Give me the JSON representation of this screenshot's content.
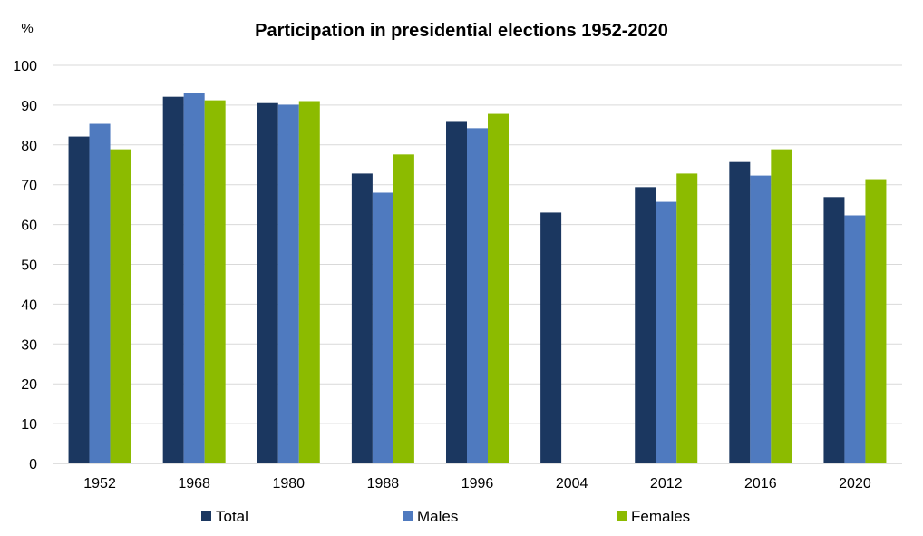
{
  "chart_data": {
    "type": "bar",
    "title": "Participation in presidential elections 1952-2020",
    "ylabel": "%",
    "xlabel": "",
    "ylim": [
      0,
      100
    ],
    "yticks": [
      0,
      10,
      20,
      30,
      40,
      50,
      60,
      70,
      80,
      90,
      100
    ],
    "grid": true,
    "legend_position": "bottom",
    "categories": [
      "1952",
      "1968",
      "1980",
      "1988",
      "1996",
      "2004",
      "2012",
      "2016",
      "2020"
    ],
    "series": [
      {
        "name": "Total",
        "color": "#1b3760",
        "values": [
          82.1,
          92.1,
          90.5,
          72.8,
          86.0,
          63.0,
          69.4,
          75.7,
          66.9
        ]
      },
      {
        "name": "Males",
        "color": "#4f7abf",
        "values": [
          85.3,
          93.0,
          90.1,
          68.0,
          84.2,
          null,
          65.7,
          72.3,
          62.3
        ]
      },
      {
        "name": "Females",
        "color": "#8cbb00",
        "values": [
          78.9,
          91.2,
          91.0,
          77.6,
          87.8,
          null,
          72.8,
          78.9,
          71.4
        ]
      }
    ]
  }
}
